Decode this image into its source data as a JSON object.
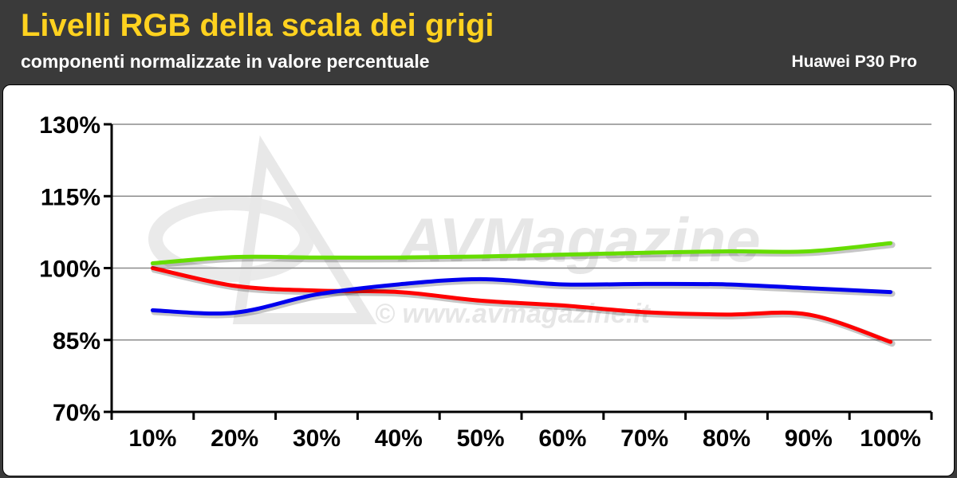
{
  "header": {
    "title": "Livelli RGB della scala dei grigi",
    "subtitle": "componenti normalizzate in valore percentuale",
    "device": "Huawei P30 Pro"
  },
  "watermark": {
    "brand": "AVMagazine",
    "url": "© www.avmagazine.it"
  },
  "colors": {
    "title": "#ffd21f",
    "header_bg": "#3a3a3a",
    "red": "#ff0000",
    "green": "#66dd00",
    "blue": "#0000ee"
  },
  "chart_data": {
    "type": "line",
    "categories": [
      "10%",
      "20%",
      "30%",
      "40%",
      "50%",
      "60%",
      "70%",
      "80%",
      "90%",
      "100%"
    ],
    "ylim": [
      70,
      130
    ],
    "yticks": [
      70,
      85,
      100,
      115,
      130
    ],
    "ytick_labels": [
      "70%",
      "85%",
      "100%",
      "115%",
      "130%"
    ],
    "grid": true,
    "series": [
      {
        "color": "#ff0000",
        "values": [
          100.0,
          96.3,
          95.3,
          95.0,
          93.2,
          92.2,
          90.8,
          90.3,
          90.3,
          84.6
        ]
      },
      {
        "color": "#66dd00",
        "values": [
          101.0,
          102.3,
          102.2,
          102.2,
          102.4,
          102.8,
          103.2,
          103.5,
          103.5,
          105.2
        ]
      },
      {
        "color": "#0000ee",
        "values": [
          91.2,
          90.7,
          94.5,
          96.6,
          97.7,
          96.6,
          96.7,
          96.6,
          95.8,
          95.0
        ]
      }
    ]
  }
}
